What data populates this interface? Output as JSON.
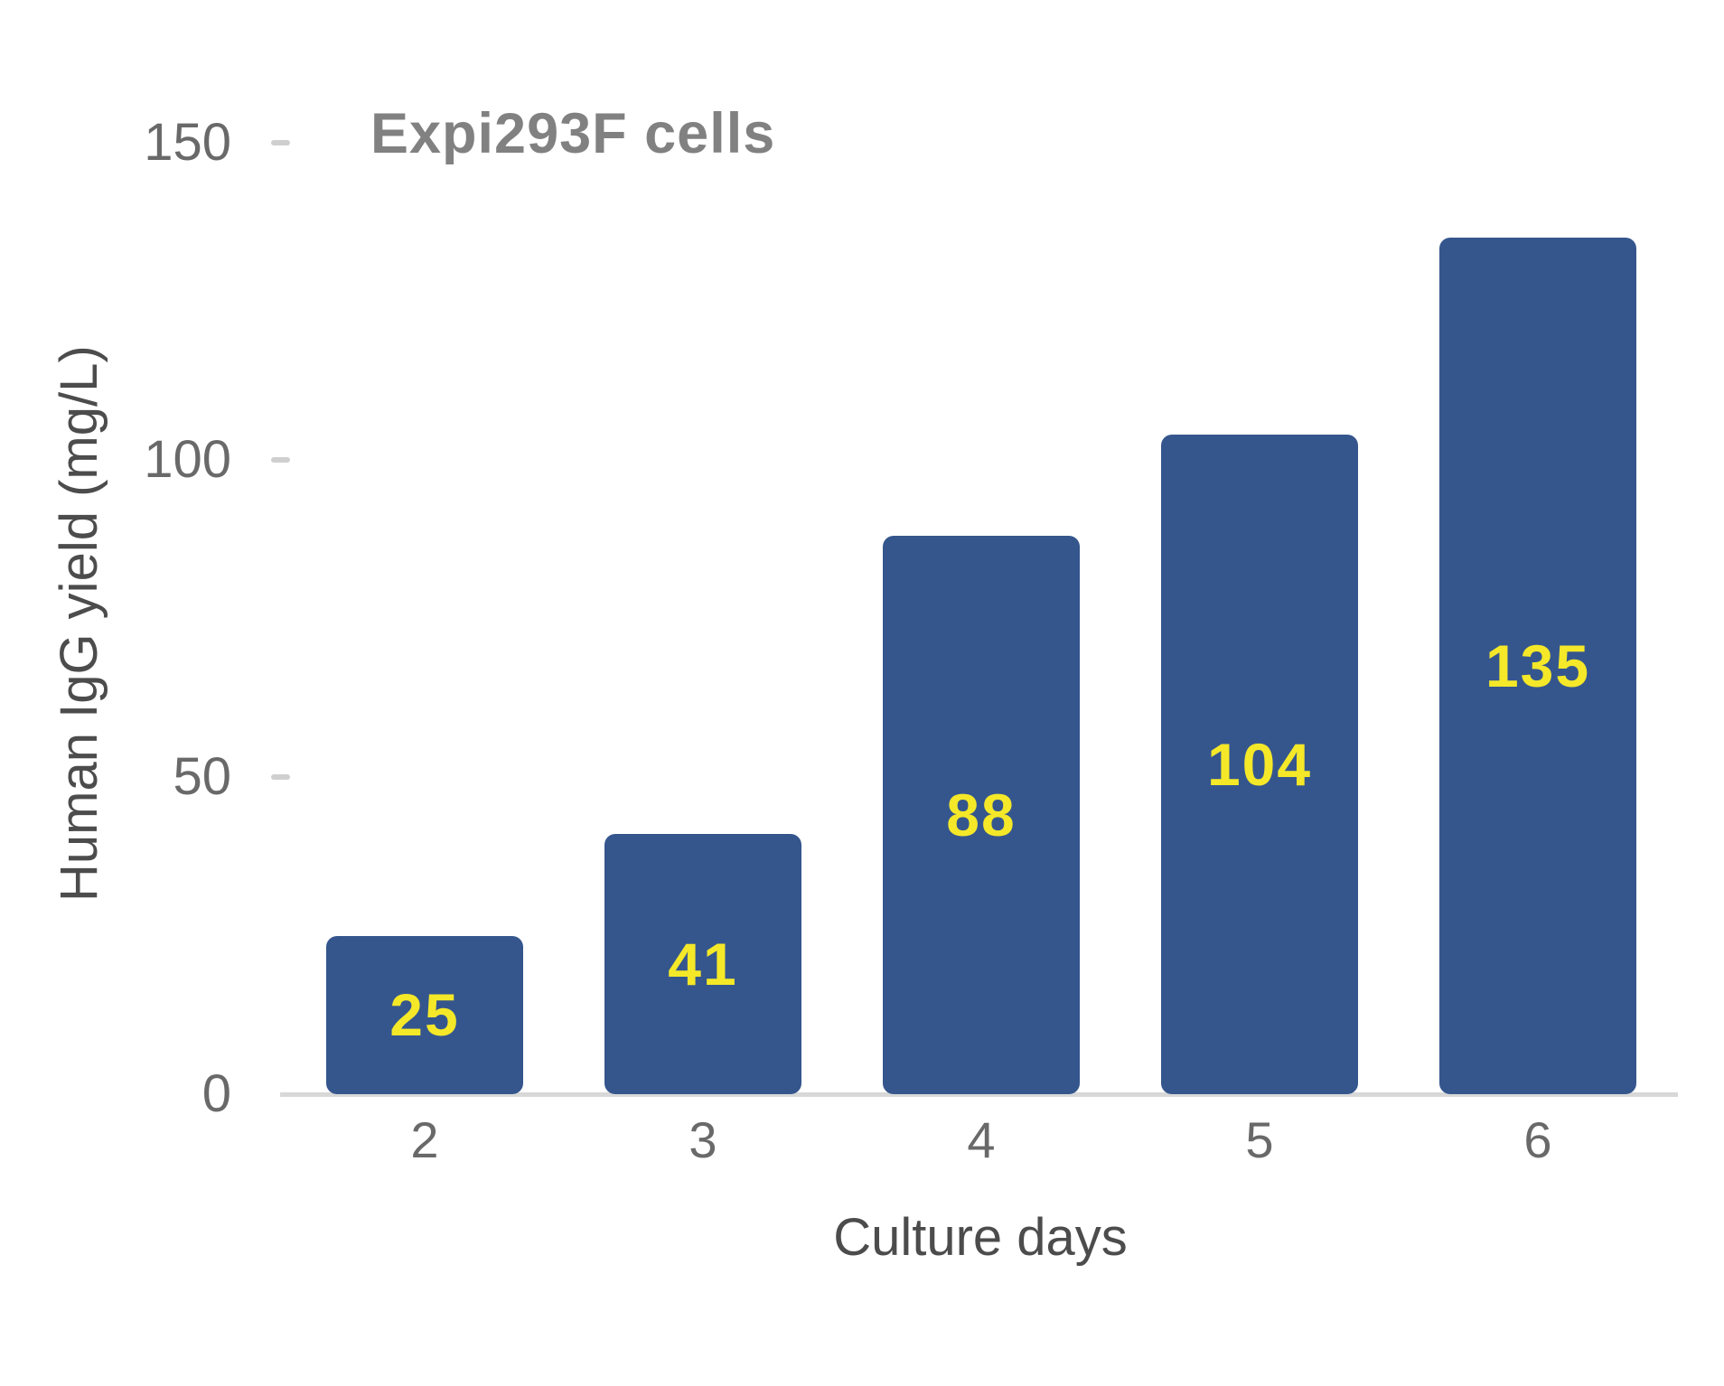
{
  "chart_data": {
    "type": "bar",
    "title": "Expi293F cells",
    "xlabel": "Culture days",
    "ylabel": "Human IgG yield (mg/L)",
    "categories": [
      "2",
      "3",
      "4",
      "5",
      "6"
    ],
    "values": [
      25,
      41,
      88,
      104,
      135
    ],
    "value_labels": [
      "25",
      "41",
      "88",
      "104",
      "135"
    ],
    "yticks": [
      0,
      50,
      100,
      150
    ],
    "ylim": [
      0,
      150
    ],
    "grid": false,
    "legend": "none",
    "colors": {
      "background": "#FFFFFF",
      "bar": "#35568D",
      "value_label": "#F4E829",
      "title_text": "#818181",
      "tick_label": "#696969",
      "axis_title": "#4C4C4C",
      "tick_mark": "#CFCFCF",
      "axis_line": "#D8D8D8"
    }
  }
}
